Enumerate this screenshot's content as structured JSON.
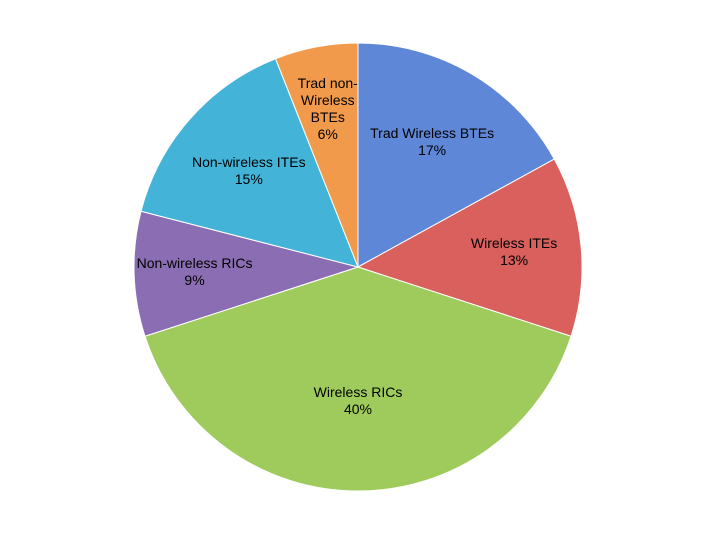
{
  "chart_data": {
    "type": "pie",
    "categories": [
      "Trad Wireless BTEs",
      "Wireless ITEs",
      "Wireless RICs",
      "Non-wireless RICs",
      "Non-wireless ITEs",
      "Trad non-Wireless BTEs"
    ],
    "values": [
      17,
      13,
      40,
      9,
      15,
      6
    ],
    "value_labels": [
      "17%",
      "13%",
      "40%",
      "9%",
      "15%",
      "6%"
    ],
    "colors": [
      "#5f87d8",
      "#d9605c",
      "#9ecb5c",
      "#8a6db2",
      "#43b3d8",
      "#f29a4c"
    ]
  }
}
